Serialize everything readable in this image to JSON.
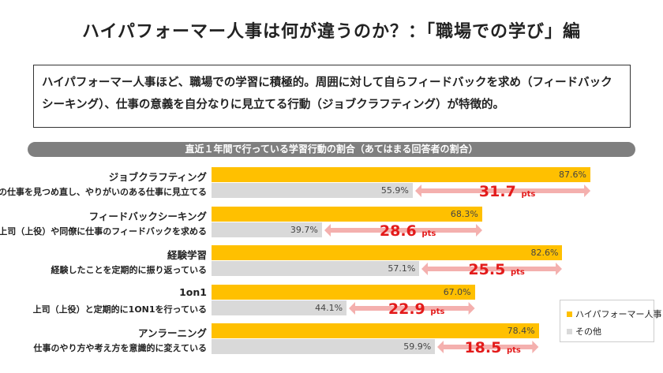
{
  "title": "ハイパフォーマー人事は何が違うのか？：「職場での学び」編",
  "summary": "ハイパフォーマー人事ほど、職場での学習に積極的。周囲に対して自らフィードバックを求め（フィードバックシーキング）、仕事の意義を自分なりに見立てる行動（ジョブクラフティング）が特徴的。",
  "chart_data": {
    "type": "bar",
    "title": "直近１年間で行っている学習行動の割合（あてはまる回答者の割合）",
    "categories": [
      "ジョブクラフティング",
      "フィードバックシーキング",
      "経験学習",
      "1on1",
      "アンラーニング"
    ],
    "descriptions": [
      "自分の仕事を見つめ直し、やりがいのある仕事に見立てる",
      "上司（上役）や同僚に仕事のフィードバックを求める",
      "経験したことを定期的に振り返っている",
      "上司（上役）と定期的に1ON1を行っている",
      "仕事のやり方や考え方を意識的に変えている"
    ],
    "series": [
      {
        "name": "ハイパフォーマー人事",
        "color": "#ffc000",
        "values": [
          87.6,
          68.3,
          82.6,
          67.0,
          78.4
        ],
        "labels": [
          "87.6%",
          "68.3%",
          "82.6%",
          "67.0%",
          "78.4%"
        ]
      },
      {
        "name": "その他",
        "color": "#d9d9d9",
        "values": [
          55.9,
          39.7,
          57.1,
          44.1,
          59.9
        ],
        "labels": [
          "55.9%",
          "39.7%",
          "57.1%",
          "44.1%",
          "59.9%"
        ]
      }
    ],
    "differences": [
      "31.7",
      "28.6",
      "25.5",
      "22.9",
      "18.5"
    ],
    "diff_unit": "pts",
    "xlim": [
      20,
      100
    ],
    "legend": "bottom-right"
  }
}
